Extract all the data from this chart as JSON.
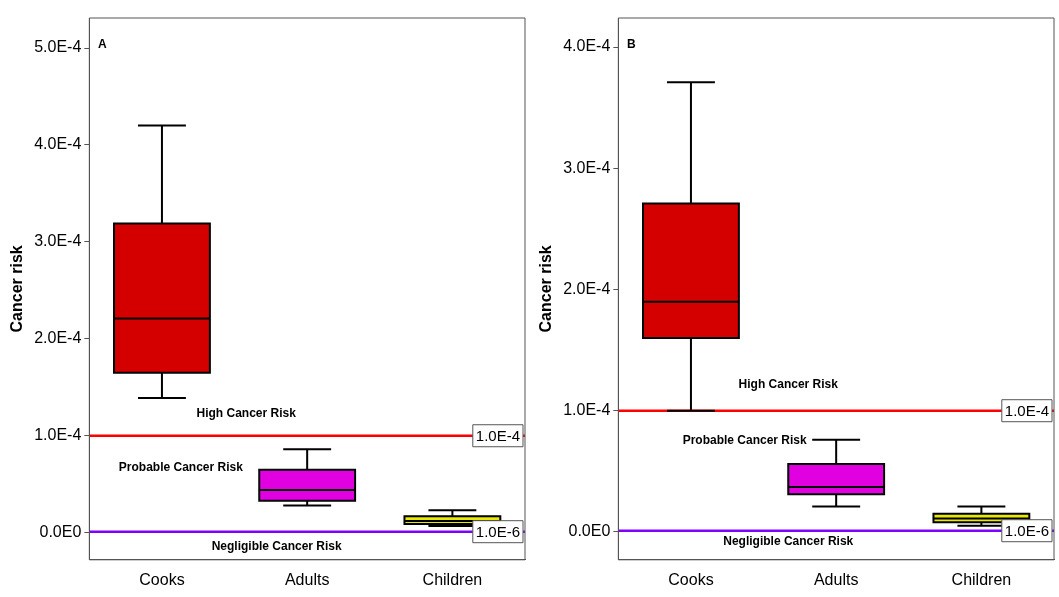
{
  "chart_data": [
    {
      "type": "box",
      "ylabel": "Cancer risk",
      "categories": [
        "Cooks",
        "Adults",
        "Children"
      ],
      "colors": [
        "#d40000",
        "#e000e0",
        "#e8e800"
      ],
      "boxes": [
        {
          "low": 0.000139,
          "q1": 0.000165,
          "median": 0.000221,
          "q3": 0.000319,
          "high": 0.00042
        },
        {
          "low": 2.8e-05,
          "q1": 3.3e-05,
          "median": 4.4e-05,
          "q3": 6.5e-05,
          "high": 8.6e-05
        },
        {
          "low": 7e-06,
          "q1": 9e-06,
          "median": 1.2e-05,
          "q3": 1.7e-05,
          "high": 2.3e-05
        }
      ],
      "ylim": [
        -2.8e-05,
        0.000531
      ],
      "yticks": [
        {
          "value": 0,
          "label": "0.0E0"
        },
        {
          "value": 0.0001,
          "label": "1.0E-4"
        },
        {
          "value": 0.0002,
          "label": "2.0E-4"
        },
        {
          "value": 0.0003,
          "label": "3.0E-4"
        },
        {
          "value": 0.0004,
          "label": "4.0E-4"
        },
        {
          "value": 0.0005,
          "label": "5.0E-4"
        }
      ],
      "ref_lines": [
        {
          "axis": "y",
          "value": 0.0001,
          "label": "1.0E-4",
          "color": "#ff0000"
        },
        {
          "axis": "y",
          "value": 1e-06,
          "label": "1.0E-6",
          "color": "#7f00ff"
        }
      ],
      "annotations": [
        "A",
        "High Cancer Risk",
        "Probable Cancer Risk",
        "Negligible Cancer Risk"
      ],
      "grid": false
    },
    {
      "type": "box",
      "ylabel": "Cancer risk",
      "categories": [
        "Cooks",
        "Adults",
        "Children"
      ],
      "colors": [
        "#d40000",
        "#e000e0",
        "#e8e800"
      ],
      "boxes": [
        {
          "low": 0.0001,
          "q1": 0.00016,
          "median": 0.00019,
          "q3": 0.000271,
          "high": 0.000371
        },
        {
          "low": 2.1e-05,
          "q1": 3.1e-05,
          "median": 3.7e-05,
          "q3": 5.6e-05,
          "high": 7.6e-05
        },
        {
          "low": 5e-06,
          "q1": 8e-06,
          "median": 1.1e-05,
          "q3": 1.5e-05,
          "high": 2.1e-05
        }
      ],
      "ylim": [
        -2.3e-05,
        0.000424
      ],
      "yticks": [
        {
          "value": 0,
          "label": "0.0E0"
        },
        {
          "value": 0.0001,
          "label": "1.0E-4"
        },
        {
          "value": 0.0002,
          "label": "2.0E-4"
        },
        {
          "value": 0.0003,
          "label": "3.0E-4"
        },
        {
          "value": 0.0004,
          "label": "4.0E-4"
        }
      ],
      "ref_lines": [
        {
          "axis": "y",
          "value": 0.0001,
          "label": "1.0E-4",
          "color": "#ff0000"
        },
        {
          "axis": "y",
          "value": 1e-06,
          "label": "1.0E-6",
          "color": "#7f00ff"
        }
      ],
      "annotations": [
        "B",
        "High Cancer Risk",
        "Probable Cancer Risk",
        "Negligible Cancer Risk"
      ],
      "grid": false
    }
  ]
}
